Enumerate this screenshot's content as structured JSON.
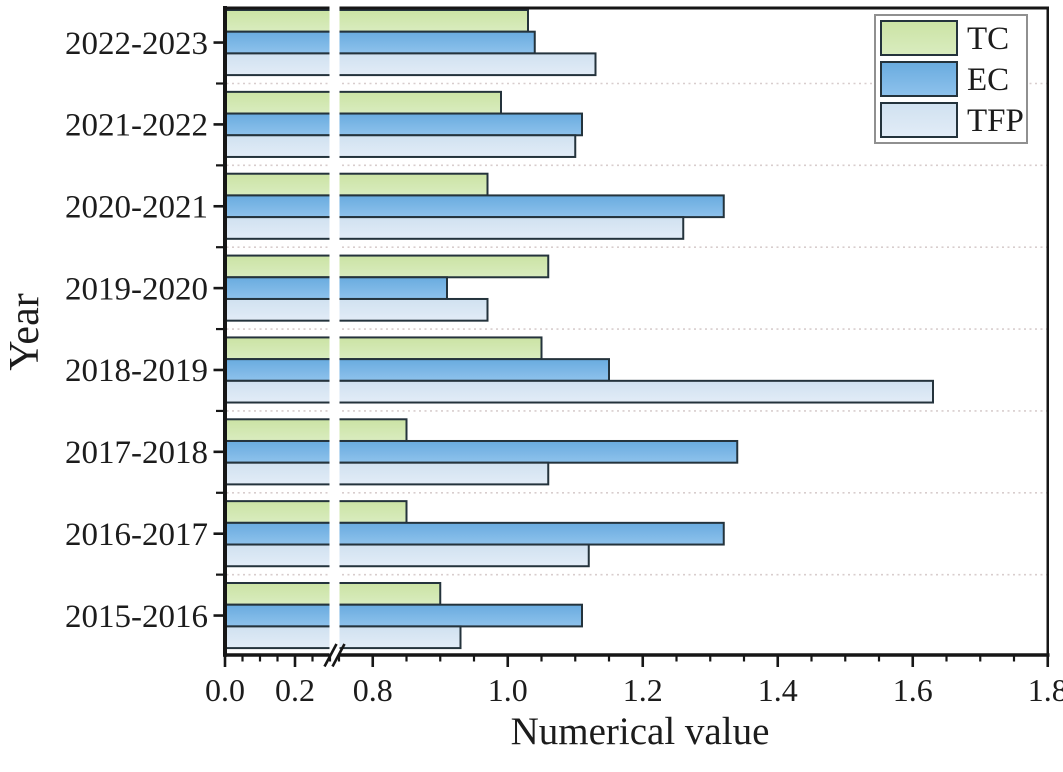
{
  "chart_data": {
    "type": "bar",
    "orientation": "horizontal",
    "title": "",
    "xlabel": "Numerical value",
    "ylabel": "Year",
    "categories": [
      "2022-2023",
      "2021-2022",
      "2020-2021",
      "2019-2020",
      "2018-2019",
      "2017-2018",
      "2016-2017",
      "2015-2016"
    ],
    "series": [
      {
        "name": "TC",
        "color": "#cbe3a4",
        "color2": "#d9ecbf",
        "values": [
          1.03,
          0.99,
          0.97,
          1.06,
          1.05,
          0.85,
          0.85,
          0.9
        ]
      },
      {
        "name": "EC",
        "color": "#69abdf",
        "color2": "#8ec2ec",
        "values": [
          1.04,
          1.11,
          1.32,
          0.91,
          1.15,
          1.34,
          1.32,
          1.11
        ]
      },
      {
        "name": "TFP",
        "color": "#d0e1f0",
        "color2": "#e2ecf7",
        "values": [
          1.13,
          1.1,
          1.26,
          0.97,
          1.63,
          1.06,
          1.12,
          0.93
        ]
      }
    ],
    "x_axis": {
      "range": [
        0.0,
        1.8
      ],
      "major_ticks": [
        0.0,
        0.2,
        0.8,
        1.0,
        1.2,
        1.4,
        1.6,
        1.8
      ],
      "major_tick_labels": [
        "0.0",
        "0.2",
        "0.8",
        "1.0",
        "1.2",
        "1.4",
        "1.6",
        "1.8"
      ],
      "minor_step": 0.05,
      "break": {
        "from": 0.3,
        "to": 0.75
      }
    },
    "legend": {
      "position": "top-right",
      "entries": [
        "TC",
        "EC",
        "TFP"
      ]
    },
    "grid": "dotted horizontal separators between year groups"
  },
  "colors": {
    "bar_border": "#24333c",
    "axis": "#161616",
    "text": "#1c1c1c",
    "gridline": "#d8cdcd",
    "legend_border": "#909090",
    "legend_bg": "#ffffff",
    "background": "#ffffff"
  }
}
